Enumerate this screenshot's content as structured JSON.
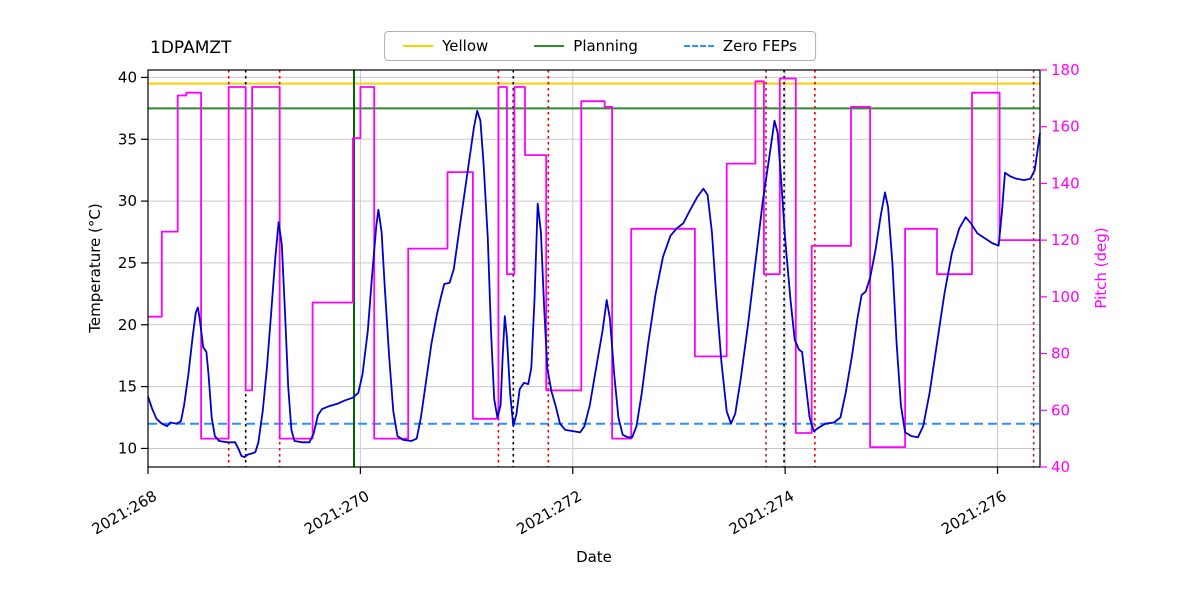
{
  "legend": {
    "items": [
      {
        "label": "Yellow",
        "color": "#ffce00",
        "style": "solid"
      },
      {
        "label": "Planning",
        "color": "#2e8b2e",
        "style": "solid"
      },
      {
        "label": "Zero FEPs",
        "color": "#2492ff",
        "style": "dashed"
      }
    ]
  },
  "chart_data": {
    "type": "line",
    "title": "1DPAMZT",
    "xlabel": "Date",
    "ylabel_left": "Temperature (°C)",
    "ylabel_right": "Pitch (deg)",
    "xlim": [
      268.0,
      276.4
    ],
    "x_tick_values": [
      268,
      270,
      272,
      274,
      276
    ],
    "x_tick_labels": [
      "2021:268",
      "2021:270",
      "2021:272",
      "2021:274",
      "2021:276"
    ],
    "ylim_left": [
      8.5,
      40.6
    ],
    "y_ticks_left": [
      10,
      15,
      20,
      25,
      30,
      35,
      40
    ],
    "ylim_right": [
      40,
      180
    ],
    "y_ticks_right": [
      40,
      60,
      80,
      100,
      120,
      140,
      160,
      180
    ],
    "grid": true,
    "grid_color": "#c9c9c9",
    "pitch_color": "#ff00ff",
    "h_lines": [
      {
        "name": "yellow-limit-line",
        "value": 39.5,
        "color": "#ffce00",
        "style": "solid"
      },
      {
        "name": "planning-limit-line",
        "value": 37.5,
        "color": "#2e8b2e",
        "style": "solid"
      },
      {
        "name": "zero-feps-line",
        "value": 12.0,
        "color": "#2492ff",
        "style": "dashed"
      }
    ],
    "v_lines": [
      {
        "name": "green-solid-line",
        "value": 269.94,
        "color": "#006400",
        "style": "solid"
      },
      {
        "name": "red-dotted-line-1",
        "value": 268.76,
        "color": "#ee0000",
        "style": "dotted"
      },
      {
        "name": "red-dotted-line-2",
        "value": 269.24,
        "color": "#ee0000",
        "style": "dotted"
      },
      {
        "name": "red-dotted-line-3",
        "value": 271.3,
        "color": "#ee0000",
        "style": "dotted"
      },
      {
        "name": "red-dotted-line-4",
        "value": 271.77,
        "color": "#ee0000",
        "style": "dotted"
      },
      {
        "name": "red-dotted-line-5",
        "value": 274.28,
        "color": "#ee0000",
        "style": "dotted"
      },
      {
        "name": "dark-red-dotted-line-1",
        "value": 273.82,
        "color": "#a52a2a",
        "style": "dotted"
      },
      {
        "name": "dark-red-dotted-line-2",
        "value": 276.34,
        "color": "#a52a2a",
        "style": "dotted"
      },
      {
        "name": "black-dotted-line-1",
        "value": 268.92,
        "color": "#000000",
        "style": "dotted"
      },
      {
        "name": "black-dotted-line-2",
        "value": 271.44,
        "color": "#000000",
        "style": "dotted"
      },
      {
        "name": "black-dotted-line-3",
        "value": 273.99,
        "color": "#000000",
        "style": "dotted"
      }
    ],
    "series": [
      {
        "name": "pitch-series",
        "axis": "right",
        "color": "#ff00ff",
        "points": [
          [
            268.0,
            93
          ],
          [
            268.13,
            93
          ],
          [
            268.13,
            123
          ],
          [
            268.28,
            123
          ],
          [
            268.28,
            171
          ],
          [
            268.36,
            171
          ],
          [
            268.36,
            172
          ],
          [
            268.5,
            172
          ],
          [
            268.5,
            50
          ],
          [
            268.76,
            50
          ],
          [
            268.76,
            174
          ],
          [
            268.92,
            174
          ],
          [
            268.92,
            67
          ],
          [
            268.98,
            67
          ],
          [
            268.98,
            174
          ],
          [
            269.24,
            174
          ],
          [
            269.24,
            50
          ],
          [
            269.55,
            50
          ],
          [
            269.55,
            98
          ],
          [
            269.93,
            98
          ],
          [
            269.93,
            156
          ],
          [
            270.0,
            156
          ],
          [
            270.0,
            174
          ],
          [
            270.13,
            174
          ],
          [
            270.13,
            50
          ],
          [
            270.45,
            50
          ],
          [
            270.45,
            117
          ],
          [
            270.82,
            117
          ],
          [
            270.82,
            144
          ],
          [
            271.06,
            144
          ],
          [
            271.06,
            57
          ],
          [
            271.3,
            57
          ],
          [
            271.3,
            174
          ],
          [
            271.38,
            174
          ],
          [
            271.38,
            108
          ],
          [
            271.45,
            108
          ],
          [
            271.45,
            174
          ],
          [
            271.55,
            174
          ],
          [
            271.55,
            150
          ],
          [
            271.75,
            150
          ],
          [
            271.75,
            67
          ],
          [
            272.08,
            67
          ],
          [
            272.08,
            169
          ],
          [
            272.3,
            169
          ],
          [
            272.3,
            167
          ],
          [
            272.37,
            167
          ],
          [
            272.37,
            50
          ],
          [
            272.55,
            50
          ],
          [
            272.55,
            124
          ],
          [
            273.15,
            124
          ],
          [
            273.15,
            79
          ],
          [
            273.45,
            79
          ],
          [
            273.45,
            147
          ],
          [
            273.72,
            147
          ],
          [
            273.72,
            176
          ],
          [
            273.8,
            176
          ],
          [
            273.8,
            108
          ],
          [
            273.95,
            108
          ],
          [
            273.95,
            177
          ],
          [
            274.1,
            177
          ],
          [
            274.1,
            52
          ],
          [
            274.25,
            52
          ],
          [
            274.25,
            118
          ],
          [
            274.62,
            118
          ],
          [
            274.62,
            167
          ],
          [
            274.8,
            167
          ],
          [
            274.8,
            47
          ],
          [
            275.13,
            47
          ],
          [
            275.13,
            124
          ],
          [
            275.43,
            124
          ],
          [
            275.43,
            108
          ],
          [
            275.76,
            108
          ],
          [
            275.76,
            172
          ],
          [
            276.02,
            172
          ],
          [
            276.02,
            120
          ],
          [
            276.4,
            120
          ]
        ]
      },
      {
        "name": "temperature-series",
        "axis": "left",
        "color": "#0000cd",
        "points": [
          [
            268.0,
            14.2
          ],
          [
            268.04,
            13.2
          ],
          [
            268.08,
            12.4
          ],
          [
            268.13,
            12.0
          ],
          [
            268.18,
            11.8
          ],
          [
            268.21,
            12.1
          ],
          [
            268.27,
            12.0
          ],
          [
            268.31,
            12.2
          ],
          [
            268.34,
            13.5
          ],
          [
            268.38,
            16.0
          ],
          [
            268.42,
            19.0
          ],
          [
            268.45,
            21.0
          ],
          [
            268.47,
            21.4
          ],
          [
            268.49,
            20.3
          ],
          [
            268.52,
            18.2
          ],
          [
            268.55,
            17.8
          ],
          [
            268.57,
            16.0
          ],
          [
            268.6,
            12.5
          ],
          [
            268.63,
            11.0
          ],
          [
            268.67,
            10.6
          ],
          [
            268.75,
            10.5
          ],
          [
            268.82,
            10.5
          ],
          [
            268.85,
            10.0
          ],
          [
            268.88,
            9.4
          ],
          [
            268.91,
            9.3
          ],
          [
            268.94,
            9.5
          ],
          [
            268.98,
            9.6
          ],
          [
            269.01,
            9.7
          ],
          [
            269.04,
            10.5
          ],
          [
            269.08,
            13.0
          ],
          [
            269.12,
            16.5
          ],
          [
            269.16,
            21.0
          ],
          [
            269.2,
            25.5
          ],
          [
            269.23,
            28.3
          ],
          [
            269.26,
            26.5
          ],
          [
            269.29,
            21.0
          ],
          [
            269.32,
            15.0
          ],
          [
            269.35,
            11.5
          ],
          [
            269.38,
            10.6
          ],
          [
            269.45,
            10.5
          ],
          [
            269.52,
            10.5
          ],
          [
            269.56,
            11.2
          ],
          [
            269.6,
            12.7
          ],
          [
            269.64,
            13.2
          ],
          [
            269.7,
            13.4
          ],
          [
            269.78,
            13.6
          ],
          [
            269.86,
            13.9
          ],
          [
            269.93,
            14.1
          ],
          [
            269.98,
            14.5
          ],
          [
            270.02,
            16.0
          ],
          [
            270.07,
            19.5
          ],
          [
            270.11,
            24.0
          ],
          [
            270.15,
            28.0
          ],
          [
            270.17,
            29.3
          ],
          [
            270.2,
            27.5
          ],
          [
            270.23,
            23.0
          ],
          [
            270.27,
            17.5
          ],
          [
            270.31,
            13.0
          ],
          [
            270.35,
            11.0
          ],
          [
            270.4,
            10.7
          ],
          [
            270.48,
            10.6
          ],
          [
            270.53,
            10.8
          ],
          [
            270.57,
            12.5
          ],
          [
            270.62,
            15.5
          ],
          [
            270.67,
            18.5
          ],
          [
            270.72,
            20.8
          ],
          [
            270.76,
            22.3
          ],
          [
            270.79,
            23.3
          ],
          [
            270.84,
            23.4
          ],
          [
            270.88,
            24.5
          ],
          [
            270.92,
            27.0
          ],
          [
            270.97,
            30.0
          ],
          [
            271.02,
            33.0
          ],
          [
            271.07,
            36.0
          ],
          [
            271.1,
            37.3
          ],
          [
            271.13,
            36.5
          ],
          [
            271.16,
            33.0
          ],
          [
            271.2,
            27.0
          ],
          [
            271.23,
            19.5
          ],
          [
            271.26,
            14.0
          ],
          [
            271.29,
            12.5
          ],
          [
            271.32,
            13.5
          ],
          [
            271.34,
            17.5
          ],
          [
            271.36,
            20.7
          ],
          [
            271.38,
            19.0
          ],
          [
            271.41,
            14.5
          ],
          [
            271.44,
            11.8
          ],
          [
            271.47,
            12.8
          ],
          [
            271.5,
            14.8
          ],
          [
            271.54,
            15.3
          ],
          [
            271.58,
            15.2
          ],
          [
            271.61,
            16.5
          ],
          [
            271.64,
            22.0
          ],
          [
            271.67,
            29.8
          ],
          [
            271.7,
            27.5
          ],
          [
            271.73,
            21.5
          ],
          [
            271.76,
            16.5
          ],
          [
            271.8,
            14.6
          ],
          [
            271.84,
            13.4
          ],
          [
            271.88,
            12.0
          ],
          [
            271.93,
            11.5
          ],
          [
            272.0,
            11.4
          ],
          [
            272.07,
            11.3
          ],
          [
            272.11,
            11.8
          ],
          [
            272.16,
            13.5
          ],
          [
            272.22,
            16.5
          ],
          [
            272.28,
            19.5
          ],
          [
            272.32,
            22.0
          ],
          [
            272.35,
            20.5
          ],
          [
            272.39,
            16.0
          ],
          [
            272.43,
            12.5
          ],
          [
            272.47,
            11.1
          ],
          [
            272.52,
            10.9
          ],
          [
            272.56,
            10.9
          ],
          [
            272.6,
            11.8
          ],
          [
            272.65,
            14.5
          ],
          [
            272.71,
            18.5
          ],
          [
            272.78,
            22.5
          ],
          [
            272.85,
            25.5
          ],
          [
            272.92,
            27.2
          ],
          [
            272.98,
            27.8
          ],
          [
            273.04,
            28.2
          ],
          [
            273.1,
            29.2
          ],
          [
            273.17,
            30.3
          ],
          [
            273.23,
            31.0
          ],
          [
            273.27,
            30.5
          ],
          [
            273.31,
            27.5
          ],
          [
            273.35,
            22.5
          ],
          [
            273.4,
            17.0
          ],
          [
            273.45,
            13.0
          ],
          [
            273.49,
            12.0
          ],
          [
            273.53,
            12.8
          ],
          [
            273.58,
            15.5
          ],
          [
            273.65,
            20.0
          ],
          [
            273.72,
            25.0
          ],
          [
            273.79,
            30.0
          ],
          [
            273.85,
            33.5
          ],
          [
            273.9,
            36.5
          ],
          [
            273.93,
            35.5
          ],
          [
            273.96,
            32.0
          ],
          [
            274.0,
            27.0
          ],
          [
            274.05,
            22.0
          ],
          [
            274.09,
            18.8
          ],
          [
            274.13,
            18.0
          ],
          [
            274.16,
            17.8
          ],
          [
            274.19,
            15.5
          ],
          [
            274.23,
            12.5
          ],
          [
            274.27,
            11.4
          ],
          [
            274.32,
            11.7
          ],
          [
            274.38,
            12.0
          ],
          [
            274.46,
            12.1
          ],
          [
            274.52,
            12.5
          ],
          [
            274.57,
            14.5
          ],
          [
            274.63,
            17.5
          ],
          [
            274.68,
            20.5
          ],
          [
            274.72,
            22.4
          ],
          [
            274.76,
            22.7
          ],
          [
            274.8,
            23.8
          ],
          [
            274.85,
            26.0
          ],
          [
            274.9,
            28.8
          ],
          [
            274.94,
            30.7
          ],
          [
            274.97,
            29.5
          ],
          [
            275.01,
            25.0
          ],
          [
            275.05,
            18.5
          ],
          [
            275.09,
            13.5
          ],
          [
            275.13,
            11.3
          ],
          [
            275.19,
            11.0
          ],
          [
            275.25,
            10.9
          ],
          [
            275.3,
            11.8
          ],
          [
            275.36,
            14.5
          ],
          [
            275.43,
            18.5
          ],
          [
            275.5,
            22.5
          ],
          [
            275.57,
            25.8
          ],
          [
            275.64,
            27.8
          ],
          [
            275.7,
            28.7
          ],
          [
            275.75,
            28.2
          ],
          [
            275.81,
            27.4
          ],
          [
            275.88,
            27.0
          ],
          [
            275.95,
            26.6
          ],
          [
            276.01,
            26.4
          ],
          [
            276.04,
            29.0
          ],
          [
            276.07,
            32.3
          ],
          [
            276.12,
            32.0
          ],
          [
            276.18,
            31.8
          ],
          [
            276.25,
            31.7
          ],
          [
            276.31,
            31.8
          ],
          [
            276.35,
            32.5
          ],
          [
            276.4,
            35.5
          ]
        ]
      }
    ]
  }
}
